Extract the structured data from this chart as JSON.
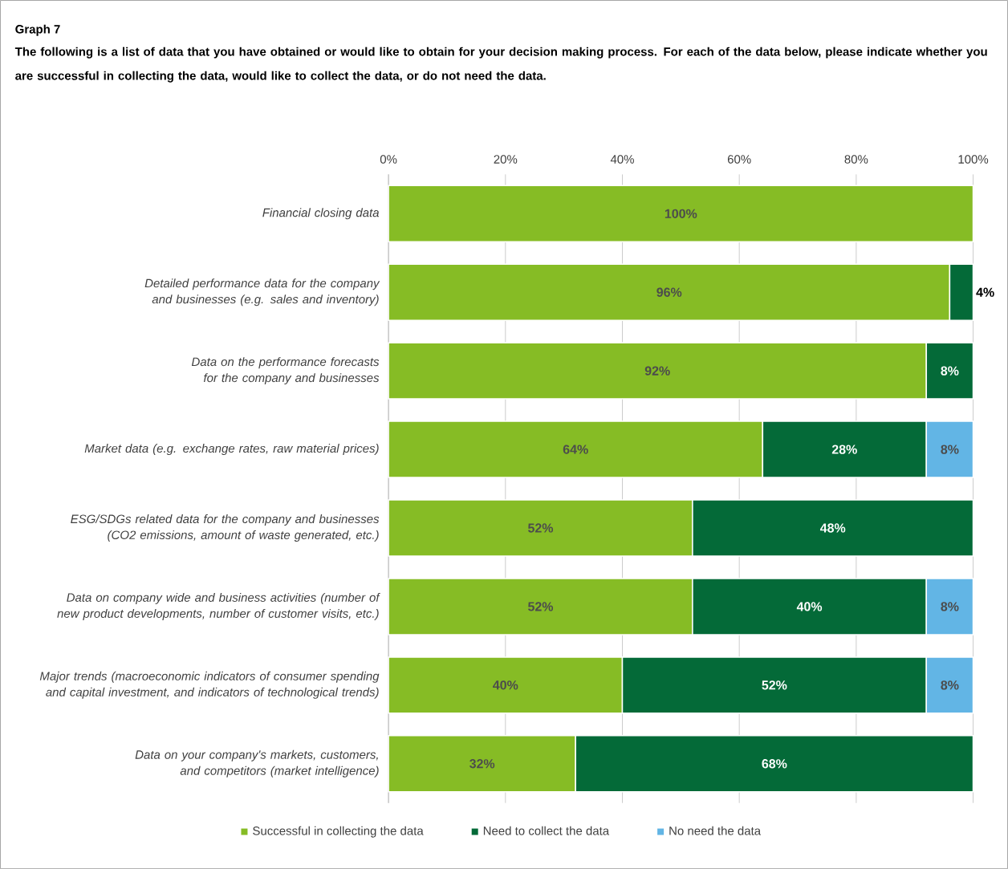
{
  "chart_data": {
    "type": "bar",
    "orientation": "horizontal",
    "stacked": true,
    "title": "Graph 7",
    "subtitle": "The following is a list of data that you have obtained or would like to obtain for your decision making process. For each of the data below, please indicate whether you are successful in collecting the data, would like to collect the data, or do not need the data.",
    "categories": [
      "Financial closing data",
      "Detailed performance data for the company and businesses (e.g. sales and inventory)",
      "Data on the performance forecasts for the company and businesses",
      "Market data (e.g. exchange rates, raw material prices)",
      "ESG/SDGs related data for the company and businesses (CO2 emissions, amount of waste generated, etc.)",
      "Data on company wide and business activities (number of new product developments, number of customer visits, etc.)",
      "Major trends (macroeconomic indicators of consumer spending and capital investment, and indicators of technological trends)",
      "Data on your company's markets, customers, and competitors (market intelligence)"
    ],
    "series": [
      {
        "name": "Successful in collecting the data",
        "color": "#86bc25",
        "values": [
          100,
          96,
          92,
          64,
          52,
          52,
          40,
          32
        ],
        "value_labels": [
          "100%",
          "96%",
          "92%",
          "64%",
          "52%",
          "52%",
          "40%",
          "32%"
        ]
      },
      {
        "name": "Need to collect the data",
        "color": "#046a38",
        "values": [
          null,
          4,
          8,
          28,
          48,
          40,
          52,
          68
        ],
        "value_labels": [
          null,
          "4%",
          "8%",
          "28%",
          "48%",
          "40%",
          "52%",
          "68%"
        ]
      },
      {
        "name": "No need the data",
        "color": "#62b5e5",
        "values": [
          null,
          null,
          null,
          8,
          null,
          8,
          8,
          null
        ],
        "value_labels": [
          null,
          null,
          null,
          "8%",
          null,
          "8%",
          "8%",
          null
        ]
      }
    ],
    "xlim": [
      0,
      100
    ],
    "xticks": [
      {
        "value": 0,
        "label": "0%"
      },
      {
        "value": 20,
        "label": "20%"
      },
      {
        "value": 40,
        "label": "40%"
      },
      {
        "value": 60,
        "label": "60%"
      },
      {
        "value": 80,
        "label": "80%"
      },
      {
        "value": 100,
        "label": "100%"
      }
    ],
    "grid": "x",
    "legend": "bottom"
  }
}
